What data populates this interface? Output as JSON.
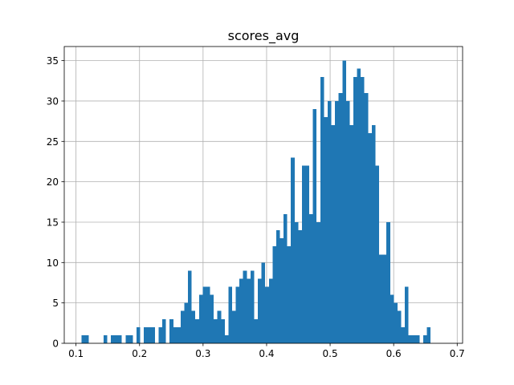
{
  "chart_data": {
    "type": "bar",
    "subtype": "histogram",
    "title": "scores_avg",
    "xlabel": "",
    "ylabel": "",
    "xlim": [
      0.0815,
      0.7085
    ],
    "ylim": [
      0,
      36.75
    ],
    "grid": true,
    "bar_color": "#1f77b4",
    "bin_start": 0.1085,
    "bin_width": 0.005785,
    "counts": [
      1,
      1,
      0,
      0,
      0,
      0,
      1,
      0,
      1,
      1,
      1,
      0,
      1,
      1,
      0,
      2,
      0,
      2,
      2,
      2,
      0,
      2,
      3,
      0,
      3,
      2,
      2,
      4,
      5,
      9,
      4,
      3,
      6,
      7,
      7,
      6,
      3,
      4,
      3,
      1,
      7,
      4,
      7,
      8,
      9,
      8,
      9,
      3,
      8,
      10,
      7,
      8,
      12,
      14,
      13,
      16,
      12,
      23,
      15,
      14,
      22,
      22,
      16,
      29,
      15,
      33,
      28,
      30,
      27,
      30,
      31,
      35,
      30,
      27,
      33,
      34,
      33,
      31,
      26,
      27,
      22,
      11,
      11,
      15,
      6,
      5,
      4,
      2,
      7,
      1,
      1,
      1,
      0,
      1,
      2
    ],
    "xticks": [
      0.1,
      0.2,
      0.3,
      0.4,
      0.5,
      0.6,
      0.7
    ],
    "xtick_labels": [
      "0.1",
      "0.2",
      "0.3",
      "0.4",
      "0.5",
      "0.6",
      "0.7"
    ],
    "yticks": [
      0,
      5,
      10,
      15,
      20,
      25,
      30,
      35
    ],
    "ytick_labels": [
      "0",
      "5",
      "10",
      "15",
      "20",
      "25",
      "30",
      "35"
    ]
  }
}
